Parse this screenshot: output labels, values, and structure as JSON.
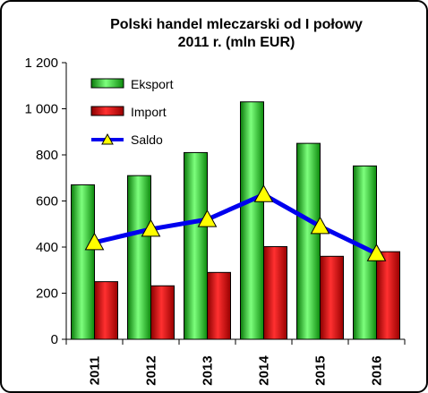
{
  "chart_data": {
    "type": "bar",
    "title_line1": "Polski handel mleczarski od  I połowy",
    "title_line2": "2011 r. (mln EUR)",
    "categories": [
      "2011",
      "2012",
      "2013",
      "2014",
      "2015",
      "2016"
    ],
    "series": [
      {
        "name": "Eksport",
        "type": "bar",
        "color": "#1fcc1f",
        "values": [
          670,
          710,
          810,
          1030,
          850,
          752
        ]
      },
      {
        "name": "Import",
        "type": "bar",
        "color": "#dd1111",
        "values": [
          250,
          232,
          290,
          402,
          360,
          380
        ]
      },
      {
        "name": "Saldo",
        "type": "line",
        "color": "#0000ee",
        "marker": "triangle",
        "marker_color": "#ffff00",
        "values": [
          420,
          478,
          520,
          628,
          490,
          372
        ]
      }
    ],
    "ylim": [
      0,
      1200
    ],
    "yticks": [
      0,
      200,
      400,
      600,
      800,
      1000,
      1200
    ],
    "ytick_labels": [
      "0",
      "200",
      "400",
      "600",
      "800",
      "1 000",
      "1 200"
    ],
    "grid": false,
    "legend_position": "top-left"
  }
}
